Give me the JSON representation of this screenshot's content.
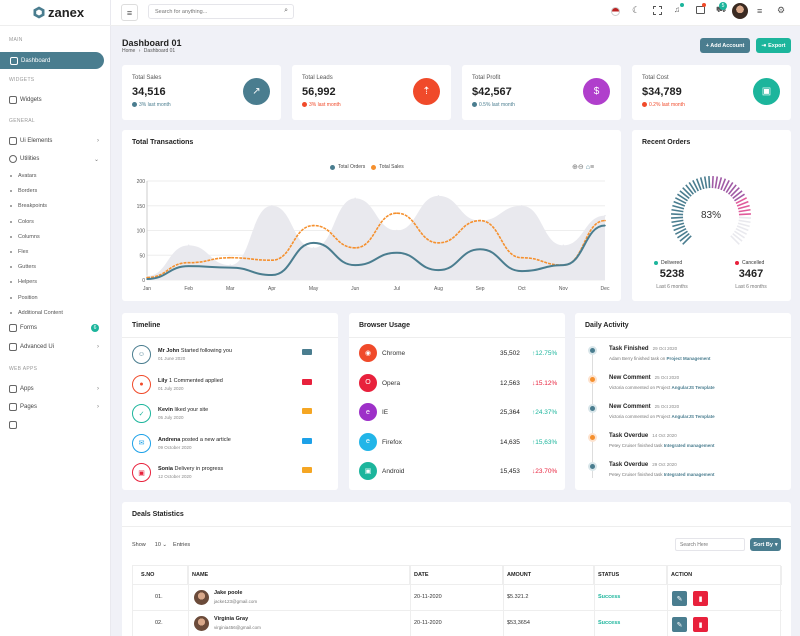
{
  "brand": {
    "name": "zanex"
  },
  "sidebar": {
    "sections": {
      "main": "MAIN",
      "widgets": "WIDGETS",
      "general": "GENERAL",
      "webapps": "WEB APPS"
    },
    "items": {
      "dashboard": "Dashboard",
      "widgets": "Widgets",
      "ui_elements": "Ui Elements",
      "utilities": "Utilities",
      "forms": "Forms",
      "forms_badge": "6",
      "advanced_ui": "Advanced Ui",
      "apps": "Apps",
      "pages": "Pages"
    },
    "utilities_sub": [
      "Avatars",
      "Borders",
      "Breakpoints",
      "Colors",
      "Columns",
      "Flex",
      "Gutters",
      "Helpers",
      "Position",
      "Additional Content"
    ]
  },
  "header": {
    "search_placeholder": "Search for anything...",
    "cart_badge": "5"
  },
  "page": {
    "title": "Dashboard 01",
    "breadcrumb_home": "Home",
    "breadcrumb_current": "Dashboard 01",
    "add_account": "+ Add Account",
    "export": "Export"
  },
  "stats": [
    {
      "label": "Total Sales",
      "value": "34,516",
      "change": "3% last month",
      "color": "#4a7d8f"
    },
    {
      "label": "Total Leads",
      "value": "56,992",
      "change": "3% last month",
      "color": "#f04a2a"
    },
    {
      "label": "Total Profit",
      "value": "$42,567",
      "change": "0.5% last month",
      "color": "#b03fcc"
    },
    {
      "label": "Total Cost",
      "value": "$34,789",
      "change": "0.2% last month",
      "color": "#1cb59c"
    }
  ],
  "transactions": {
    "title": "Total Transactions",
    "legend": [
      "Total Orders",
      "Total Sales"
    ]
  },
  "chart_data": {
    "type": "line",
    "categories": [
      "Jan",
      "Feb",
      "Mar",
      "Apr",
      "May",
      "Jun",
      "Jul",
      "Aug",
      "Sep",
      "Oct",
      "Nov",
      "Dec"
    ],
    "ylim": [
      0,
      200
    ],
    "yticks": [
      "0",
      "50",
      "100",
      "150",
      "200"
    ],
    "series": [
      {
        "name": "Total Orders",
        "color": "#4a7d8f",
        "values": [
          2,
          28,
          25,
          10,
          75,
          30,
          55,
          20,
          62,
          18,
          30,
          110
        ]
      },
      {
        "name": "Total Sales",
        "color": "#f5902e",
        "values": [
          5,
          35,
          45,
          40,
          110,
          65,
          135,
          75,
          120,
          45,
          30,
          120
        ]
      },
      {
        "name": "",
        "color": "#e9e9ee",
        "values": [
          8,
          70,
          30,
          150,
          65,
          165,
          100,
          170,
          120,
          150,
          70,
          130
        ]
      }
    ]
  },
  "recent_orders": {
    "title": "Recent Orders",
    "percent": "83%",
    "delivered_label": "Delivered",
    "delivered_value": "5238",
    "delivered_period": "Last 6 months",
    "cancelled_label": "Cancelled",
    "cancelled_value": "3467",
    "cancelled_period": "Last 6 months"
  },
  "timeline": {
    "title": "Timeline",
    "items": [
      {
        "name": "Mr John",
        "text": "Started following you",
        "date": "01 June 2020",
        "color": "#4a7d8f",
        "icon": "user-icon"
      },
      {
        "name": "Lily",
        "text": "1 Commented applied",
        "date": "01 July 2020",
        "color": "#f04a2a",
        "icon": "comment-icon"
      },
      {
        "name": "Kevin",
        "text": "liked your site",
        "date": "05 July 2020",
        "color": "#1cb59c",
        "icon": "thumbs-up-icon"
      },
      {
        "name": "Andrena",
        "text": "posted a new article",
        "date": "09 October 2020",
        "color": "#1da1e8",
        "icon": "mail-icon"
      },
      {
        "name": "Sonia",
        "text": "Delivery in progress",
        "date": "12 October 2020",
        "color": "#e8213c",
        "icon": "bag-icon"
      }
    ]
  },
  "browser": {
    "title": "Browser Usage",
    "items": [
      {
        "name": "Chrome",
        "value": "35,502",
        "pct": "12.75%",
        "up": true,
        "color": "#f04a2a"
      },
      {
        "name": "Opera",
        "value": "12,563",
        "pct": "15.12%",
        "up": false,
        "color": "#e8213c"
      },
      {
        "name": "IE",
        "value": "25,364",
        "pct": "24.37%",
        "up": true,
        "color": "#9d30c8"
      },
      {
        "name": "Firefox",
        "value": "14,635",
        "pct": "15,63%",
        "up": true,
        "color": "#22b5e8"
      },
      {
        "name": "Android",
        "value": "15,453",
        "pct": "23.70%",
        "up": false,
        "color": "#1cb59c"
      }
    ]
  },
  "activity": {
    "title": "Daily Activity",
    "items": [
      {
        "title": "Task Finished",
        "date": "29 Oct 2020",
        "sub": "Adam Berry finished task on",
        "link": "Project Management",
        "color": "#4a7d8f"
      },
      {
        "title": "New Comment",
        "date": "25 Oct 2020",
        "sub": "Victoria commented on Project",
        "link": "AngularJS Template",
        "color": "#f5902e"
      },
      {
        "title": "New Comment",
        "date": "25 Oct 2020",
        "sub": "Victoria commented on Project",
        "link": "AngularJS Template",
        "color": "#4a7d8f"
      },
      {
        "title": "Task Overdue",
        "date": "14 Oct 2020",
        "sub": "Petey Cruiser finished task",
        "link": "Integrated management",
        "color": "#f5902e"
      },
      {
        "title": "Task Overdue",
        "date": "29 Oct 2020",
        "sub": "Petey Cruiser finished task",
        "link": "Integrated management",
        "color": "#4a7d8f"
      }
    ]
  },
  "deals": {
    "title": "Deals Statistics",
    "show": "Show",
    "entries_value": "10",
    "entries": "Entries",
    "search_placeholder": "Search Here",
    "sort": "Sort By",
    "columns": [
      "S.NO",
      "NAME",
      "DATE",
      "AMOUNT",
      "STATUS",
      "ACTION"
    ],
    "rows": [
      {
        "no": "01.",
        "name": "Jake poole",
        "email": "jacke123@gmail.com",
        "date": "20-11-2020",
        "amount": "$5.321.2",
        "status": "Success"
      },
      {
        "no": "02.",
        "name": "Virginia Gray",
        "email": "virginia456@gmail.com",
        "date": "20-11-2020",
        "amount": "$53,3654",
        "status": "Success"
      }
    ]
  }
}
